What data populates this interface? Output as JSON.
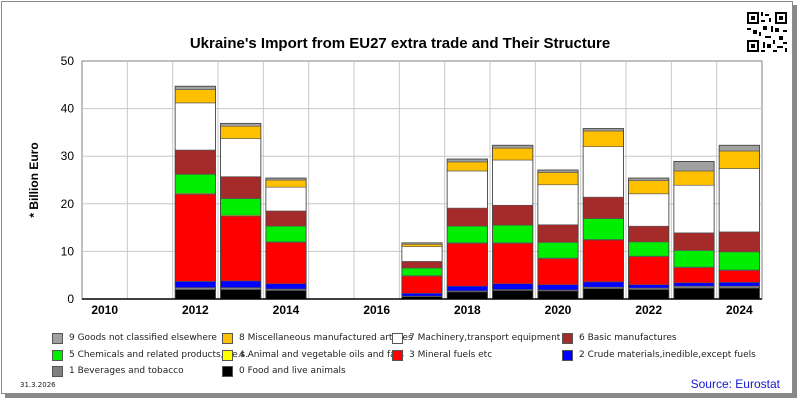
{
  "chart_data": {
    "type": "bar",
    "stacked": true,
    "title": "Ukraine's Import from EU27 extra trade and Their Structure",
    "ylabel": "* Billion Euro",
    "ylim": [
      0,
      50
    ],
    "yticks": [
      0,
      10,
      20,
      30,
      40,
      50
    ],
    "categories": [
      2010,
      2011,
      2012,
      2013,
      2014,
      2015,
      2016,
      2017,
      2018,
      2019,
      2020,
      2021,
      2022,
      2023,
      2024
    ],
    "xtick_labels": [
      "2010",
      "2012",
      "2014",
      "2016",
      "2018",
      "2020",
      "2022",
      "2024"
    ],
    "grid": true,
    "legend_position": "bottom",
    "series": [
      {
        "name": "0 Food and live animals",
        "color": "#000000",
        "values": [
          null,
          null,
          2.0,
          2.0,
          1.8,
          null,
          null,
          0.5,
          1.5,
          1.8,
          1.7,
          2.2,
          2.0,
          2.3,
          2.3
        ]
      },
      {
        "name": "1 Beverages and tobacco",
        "color": "#808080",
        "values": [
          null,
          null,
          0.4,
          0.4,
          0.3,
          null,
          null,
          0.1,
          0.2,
          0.2,
          0.2,
          0.3,
          0.3,
          0.4,
          0.4
        ]
      },
      {
        "name": "2 Crude materials,inedible,except fuels",
        "color": "#0000ff",
        "values": [
          null,
          null,
          1.3,
          1.4,
          1.1,
          null,
          null,
          0.6,
          1.0,
          1.2,
          1.1,
          1.1,
          0.7,
          0.7,
          0.8
        ]
      },
      {
        "name": "3 Mineral fuels etc",
        "color": "#ff0000",
        "values": [
          null,
          null,
          18.3,
          13.6,
          8.7,
          null,
          null,
          3.6,
          9.0,
          8.5,
          5.5,
          8.8,
          5.9,
          3.2,
          2.5
        ]
      },
      {
        "name": "4 Animal and vegetable oils and fats",
        "color": "#ffff00",
        "values": [
          null,
          null,
          0.2,
          0.2,
          0.1,
          null,
          null,
          0.1,
          0.1,
          0.1,
          0.1,
          0.1,
          0.1,
          0.1,
          0.1
        ]
      },
      {
        "name": "5 Chemicals and related products,n.e.s.",
        "color": "#00ee00",
        "values": [
          null,
          null,
          4.0,
          3.5,
          3.3,
          null,
          null,
          1.6,
          3.5,
          3.7,
          3.3,
          4.4,
          3.0,
          3.5,
          3.8
        ]
      },
      {
        "name": "6 Basic manufactures",
        "color": "#a52a2a",
        "values": [
          null,
          null,
          5.1,
          4.6,
          3.2,
          null,
          null,
          1.4,
          3.8,
          4.2,
          3.7,
          4.5,
          3.3,
          3.7,
          4.2
        ]
      },
      {
        "name": "7 Machinery,transport equipment",
        "color": "#ffffff",
        "values": [
          null,
          null,
          9.9,
          8.0,
          5.0,
          null,
          null,
          3.1,
          7.8,
          9.5,
          8.4,
          10.6,
          6.8,
          10.0,
          13.3
        ]
      },
      {
        "name": "8 Miscellaneous manufactured articles",
        "color": "#ffc000",
        "values": [
          null,
          null,
          2.8,
          2.6,
          1.5,
          null,
          null,
          0.5,
          1.9,
          2.5,
          2.6,
          3.3,
          2.8,
          3.0,
          3.7
        ]
      },
      {
        "name": "9 Goods not classified elsewhere",
        "color": "#a0a0a0",
        "values": [
          null,
          null,
          0.7,
          0.6,
          0.4,
          null,
          null,
          0.3,
          0.6,
          0.6,
          0.5,
          0.5,
          0.5,
          2.0,
          1.2
        ]
      }
    ]
  },
  "legend_layout": [
    [
      "9 Goods not classified elsewhere",
      "8 Miscellaneous manufactured articles",
      "7 Machinery,transport equipment",
      "6 Basic manufactures"
    ],
    [
      "5 Chemicals and related products,n.e.s.",
      "4 Animal and vegetable oils and fats",
      "3 Mineral fuels etc",
      "2 Crude materials,inedible,except fuels"
    ],
    [
      "1 Beverages and tobacco",
      "0 Food and live animals"
    ]
  ],
  "date": "31.3.2026",
  "source": "Source: Eurostat"
}
